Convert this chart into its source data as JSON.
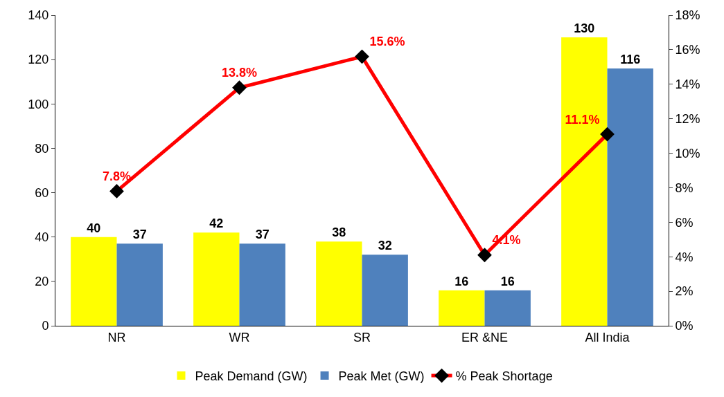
{
  "chart_data": {
    "type": "bar",
    "categories": [
      "NR",
      "WR",
      "SR",
      "ER &NE",
      "All India"
    ],
    "series": [
      {
        "name": "Peak Demand (GW)",
        "color": "#ffff00",
        "values": [
          40,
          42,
          38,
          16,
          130
        ],
        "value_labels": [
          "40",
          "42",
          "38",
          "16",
          "130"
        ]
      },
      {
        "name": "Peak Met (GW)",
        "color": "#4f81bd",
        "values": [
          37,
          37,
          32,
          16,
          116
        ],
        "value_labels": [
          "37",
          "37",
          "32",
          "16",
          "116"
        ]
      },
      {
        "name": "% Peak Shortage",
        "type": "line",
        "axis": "y2",
        "color": "#ff0000",
        "marker": "diamond",
        "values": [
          7.8,
          13.8,
          15.6,
          4.1,
          11.1
        ],
        "value_labels": [
          "7.8%",
          "13.8%",
          "15.6%",
          "4.1%",
          "11.1%"
        ]
      }
    ],
    "ylim": [
      0,
      140
    ],
    "yticks": [
      0,
      20,
      40,
      60,
      80,
      100,
      120,
      140
    ],
    "y2lim": [
      0,
      18
    ],
    "y2ticks": [
      {
        "value": 0,
        "label": "0%"
      },
      {
        "value": 2,
        "label": "2%"
      },
      {
        "value": 4,
        "label": "4%"
      },
      {
        "value": 6,
        "label": "6%"
      },
      {
        "value": 8,
        "label": "8%"
      },
      {
        "value": 10,
        "label": "10%"
      },
      {
        "value": 12,
        "label": "12%"
      },
      {
        "value": 14,
        "label": "14%"
      },
      {
        "value": 16,
        "label": "16%"
      },
      {
        "value": 18,
        "label": "18%"
      }
    ],
    "legend": "bottom"
  }
}
